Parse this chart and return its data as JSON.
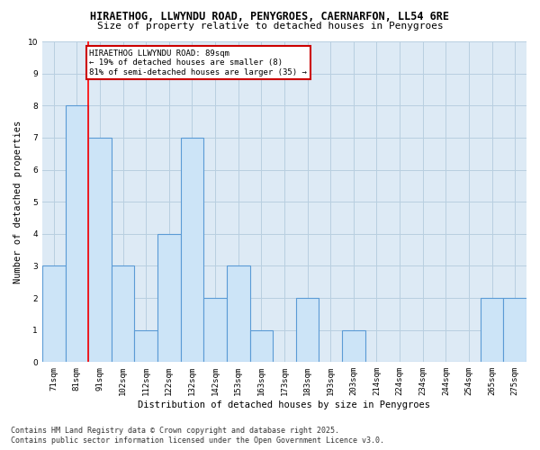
{
  "title_line1": "HIRAETHOG, LLWYNDU ROAD, PENYGROES, CAERNARFON, LL54 6RE",
  "title_line2": "Size of property relative to detached houses in Penygroes",
  "xlabel": "Distribution of detached houses by size in Penygroes",
  "ylabel": "Number of detached properties",
  "categories": [
    "71sqm",
    "81sqm",
    "91sqm",
    "102sqm",
    "112sqm",
    "122sqm",
    "132sqm",
    "142sqm",
    "153sqm",
    "163sqm",
    "173sqm",
    "183sqm",
    "193sqm",
    "203sqm",
    "214sqm",
    "224sqm",
    "234sqm",
    "244sqm",
    "254sqm",
    "265sqm",
    "275sqm"
  ],
  "values": [
    3,
    8,
    7,
    3,
    1,
    4,
    7,
    2,
    3,
    1,
    0,
    2,
    0,
    1,
    0,
    0,
    0,
    0,
    0,
    2,
    2
  ],
  "bar_color": "#cce4f7",
  "bar_edge_color": "#5b9bd5",
  "bar_edge_width": 0.8,
  "red_line_x": 1.5,
  "annotation_title": "HIRAETHOG LLWYNDU ROAD: 89sqm",
  "annotation_line2": "← 19% of detached houses are smaller (8)",
  "annotation_line3": "81% of semi-detached houses are larger (35) →",
  "annotation_box_color": "#ffffff",
  "annotation_box_edge": "#cc0000",
  "ylim": [
    0,
    10
  ],
  "yticks": [
    0,
    1,
    2,
    3,
    4,
    5,
    6,
    7,
    8,
    9,
    10
  ],
  "grid_color": "#b8cfe0",
  "plot_bg_color": "#ddeaf5",
  "fig_bg_color": "#ffffff",
  "footer_line1": "Contains HM Land Registry data © Crown copyright and database right 2025.",
  "footer_line2": "Contains public sector information licensed under the Open Government Licence v3.0.",
  "title_fontsize": 8.5,
  "subtitle_fontsize": 8,
  "axis_label_fontsize": 7.5,
  "tick_fontsize": 6.5,
  "annotation_fontsize": 6.5,
  "footer_fontsize": 6
}
